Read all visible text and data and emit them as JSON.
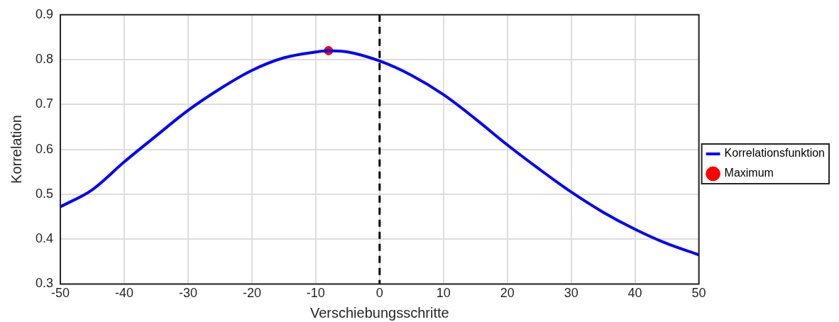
{
  "chart_data": {
    "type": "line",
    "xlabel": "Verschiebungsschritte",
    "ylabel": "Korrelation",
    "xlim": [
      -50,
      50
    ],
    "xticks": [
      -50,
      -40,
      -30,
      -20,
      -10,
      0,
      10,
      20,
      30,
      40,
      50
    ],
    "ylim": [
      0.3,
      0.9
    ],
    "yticks": [
      0.3,
      0.4,
      0.5,
      0.6,
      0.7,
      0.8,
      0.9
    ],
    "grid": true,
    "legend": "right",
    "series": [
      {
        "name": "Korrelationsfunktion",
        "color": "#0000ff",
        "marker": "none",
        "line_style": "solid",
        "x": [
          -50,
          -45,
          -40,
          -35,
          -30,
          -25,
          -20,
          -15,
          -10,
          -8,
          -5,
          0,
          5,
          10,
          15,
          20,
          25,
          30,
          35,
          40,
          45,
          50
        ],
        "values": [
          0.472,
          0.51,
          0.572,
          0.63,
          0.687,
          0.735,
          0.776,
          0.804,
          0.817,
          0.82,
          0.817,
          0.797,
          0.765,
          0.722,
          0.668,
          0.61,
          0.556,
          0.505,
          0.46,
          0.422,
          0.39,
          0.365
        ]
      },
      {
        "name": "Maximum",
        "type": "scatter",
        "color": "#ff0000",
        "marker": "circle",
        "x": [
          -8
        ],
        "values": [
          0.82
        ]
      }
    ],
    "ref_lines": [
      {
        "axis": "x",
        "value": 0,
        "color": "#000000",
        "line_style": "dashed"
      }
    ]
  }
}
